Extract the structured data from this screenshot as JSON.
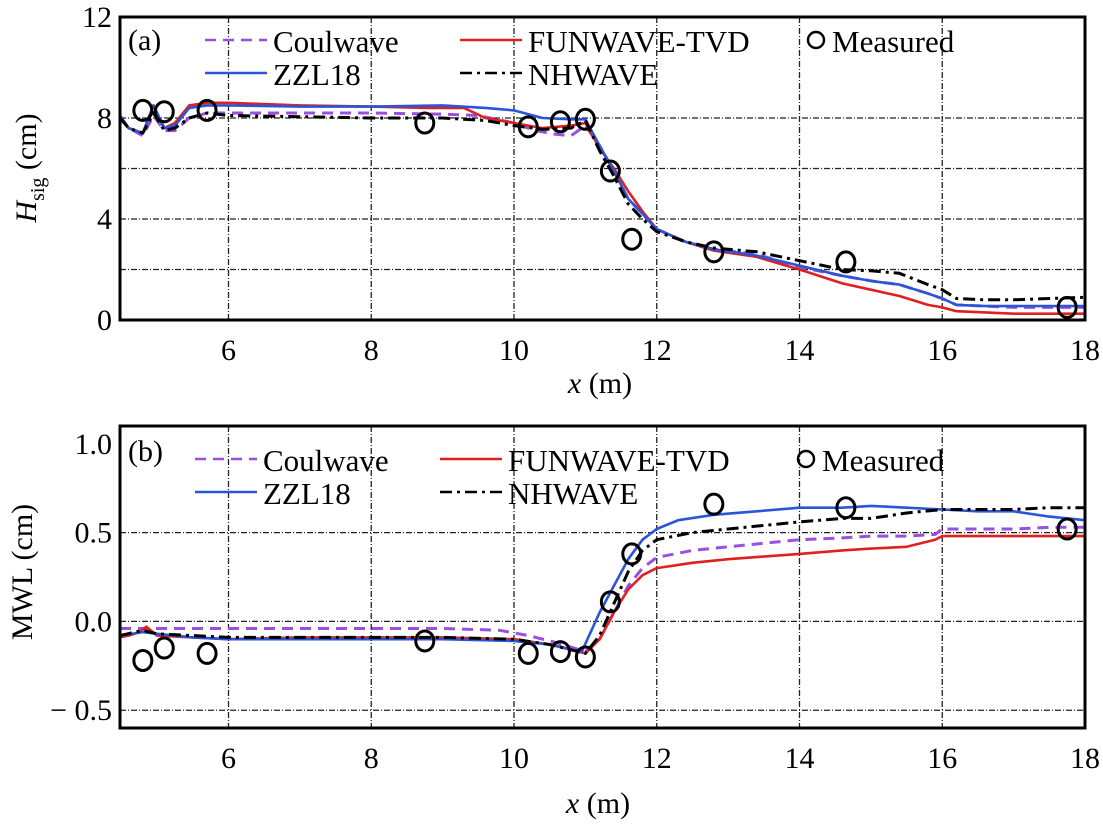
{
  "chart_data": [
    {
      "type": "line",
      "panel_tag": "(a)",
      "title": "",
      "xlabel_var": "x",
      "xlabel_unit": " (m)",
      "ylabel_var": "H",
      "ylabel_sub": "sig",
      "ylabel_unit": " (cm)",
      "xlim": [
        4.48,
        18
      ],
      "ylim": [
        0,
        12
      ],
      "xticks": [
        6,
        8,
        10,
        12,
        14,
        16,
        18
      ],
      "xtick_labels": [
        "6",
        "8",
        "10",
        "12",
        "14",
        "16",
        "18"
      ],
      "yticks": [
        0,
        4,
        8,
        12
      ],
      "ytick_labels": [
        "0",
        "4",
        "8",
        "12"
      ],
      "ygrid": [
        2,
        4,
        6,
        8
      ],
      "grid": true,
      "legend_position": "top",
      "series": [
        {
          "name": "Coulwave",
          "style": "dashed",
          "color": "#9b4fe0",
          "x": [
            4.48,
            4.6,
            4.8,
            4.95,
            5.1,
            5.25,
            5.45,
            5.7,
            6.0,
            7.0,
            8.0,
            9.0,
            9.5,
            10.0,
            10.3,
            10.6,
            10.8,
            11.0,
            11.2,
            11.4,
            11.6,
            11.8,
            12.0,
            12.4,
            12.8,
            13.4,
            14.0,
            14.6,
            15.0,
            15.4,
            15.8,
            16.0,
            16.2,
            16.6,
            17.0,
            17.5,
            18.0
          ],
          "y": [
            8.0,
            7.6,
            7.3,
            8.1,
            7.5,
            7.5,
            8.0,
            8.2,
            8.2,
            8.2,
            8.2,
            8.15,
            8.1,
            7.8,
            7.5,
            7.35,
            7.3,
            7.7,
            6.9,
            5.9,
            4.8,
            4.2,
            3.6,
            3.1,
            2.8,
            2.6,
            2.1,
            1.75,
            1.55,
            1.4,
            1.05,
            0.85,
            0.6,
            0.55,
            0.5,
            0.5,
            0.5
          ]
        },
        {
          "name": "FUNWAVE-TVD",
          "style": "solid",
          "color": "#e02020",
          "x": [
            4.48,
            4.6,
            4.8,
            4.95,
            5.1,
            5.25,
            5.45,
            5.7,
            6.0,
            7.0,
            8.0,
            8.8,
            9.3,
            9.6,
            10.0,
            10.4,
            10.8,
            11.0,
            11.2,
            11.4,
            11.6,
            11.8,
            12.0,
            12.4,
            12.8,
            13.4,
            14.0,
            14.6,
            15.0,
            15.4,
            15.8,
            16.0,
            16.2,
            16.6,
            17.0,
            17.5,
            18.0
          ],
          "y": [
            8.1,
            7.6,
            7.4,
            8.5,
            7.6,
            7.8,
            8.5,
            8.6,
            8.6,
            8.5,
            8.45,
            8.4,
            8.4,
            8.0,
            7.8,
            7.6,
            7.7,
            7.8,
            6.8,
            6.0,
            5.1,
            4.3,
            3.6,
            3.1,
            2.75,
            2.5,
            2.0,
            1.45,
            1.2,
            0.95,
            0.6,
            0.5,
            0.35,
            0.3,
            0.25,
            0.25,
            0.25
          ]
        },
        {
          "name": "ZZL18",
          "style": "solid",
          "color": "#2a55d6",
          "x": [
            4.48,
            4.6,
            4.8,
            4.95,
            5.1,
            5.25,
            5.45,
            5.7,
            6.0,
            7.0,
            8.0,
            9.0,
            9.6,
            10.0,
            10.4,
            10.8,
            11.0,
            11.2,
            11.4,
            11.6,
            11.8,
            12.0,
            12.4,
            12.8,
            13.4,
            14.0,
            14.6,
            15.0,
            15.4,
            15.8,
            16.0,
            16.2,
            16.6,
            17.0,
            17.5,
            18.0
          ],
          "y": [
            8.1,
            7.6,
            7.4,
            8.5,
            7.6,
            7.7,
            8.4,
            8.5,
            8.5,
            8.45,
            8.45,
            8.5,
            8.4,
            8.3,
            8.0,
            7.95,
            7.95,
            6.9,
            5.9,
            4.8,
            4.2,
            3.6,
            3.1,
            2.8,
            2.55,
            2.15,
            1.75,
            1.55,
            1.4,
            1.05,
            0.85,
            0.6,
            0.55,
            0.55,
            0.55,
            0.55
          ]
        },
        {
          "name": "NHWAVE",
          "style": "dashdot",
          "color": "#000000",
          "x": [
            4.48,
            4.6,
            4.8,
            4.95,
            5.1,
            5.25,
            5.45,
            5.7,
            6.0,
            7.0,
            8.0,
            9.0,
            9.6,
            10.0,
            10.4,
            10.8,
            11.0,
            11.2,
            11.4,
            11.6,
            11.8,
            12.0,
            12.4,
            12.8,
            13.4,
            14.0,
            14.6,
            15.0,
            15.4,
            15.8,
            16.0,
            16.2,
            16.6,
            17.0,
            17.5,
            18.0
          ],
          "y": [
            8.0,
            7.6,
            7.4,
            8.2,
            7.5,
            7.6,
            8.0,
            8.2,
            8.1,
            8.05,
            8.0,
            8.0,
            7.9,
            7.7,
            7.55,
            7.6,
            7.9,
            6.7,
            5.7,
            4.6,
            4.0,
            3.5,
            3.1,
            2.85,
            2.7,
            2.35,
            2.0,
            1.95,
            1.85,
            1.4,
            1.2,
            0.85,
            0.8,
            0.8,
            0.85,
            0.9
          ]
        }
      ],
      "measured": {
        "name": "Measured",
        "x": [
          4.8,
          5.1,
          5.7,
          8.75,
          10.2,
          10.65,
          11.0,
          11.35,
          11.65,
          12.8,
          14.65,
          17.75
        ],
        "y": [
          8.3,
          8.25,
          8.3,
          7.8,
          7.65,
          7.85,
          7.95,
          5.9,
          3.2,
          2.7,
          2.3,
          0.5
        ]
      }
    },
    {
      "type": "line",
      "panel_tag": "(b)",
      "title": "",
      "xlabel_var": "x",
      "xlabel_unit": " (m)",
      "ylabel": "MWL (cm)",
      "xlim": [
        4.48,
        18
      ],
      "ylim": [
        -0.6,
        1.1
      ],
      "xticks": [
        6,
        8,
        10,
        12,
        14,
        16,
        18
      ],
      "xtick_labels": [
        "6",
        "8",
        "10",
        "12",
        "14",
        "16",
        "18"
      ],
      "yticks": [
        -0.5,
        0.0,
        0.5,
        1.0
      ],
      "ytick_labels": [
        "− 0.5",
        "0.0",
        "0.5",
        "1.0"
      ],
      "ygrid": [
        -0.5,
        0.0,
        0.5
      ],
      "grid": true,
      "legend_position": "top",
      "series": [
        {
          "name": "Coulwave",
          "style": "dashed",
          "color": "#9b4fe0",
          "x": [
            4.48,
            4.8,
            5.0,
            6.0,
            7.0,
            8.0,
            9.0,
            9.8,
            10.2,
            10.6,
            11.0,
            11.2,
            11.4,
            11.6,
            11.8,
            12.0,
            12.5,
            13.0,
            14.0,
            14.6,
            15.0,
            15.5,
            15.9,
            16.0,
            16.5,
            17.0,
            17.5,
            18.0
          ],
          "y": [
            -0.04,
            -0.04,
            -0.04,
            -0.04,
            -0.04,
            -0.04,
            -0.04,
            -0.05,
            -0.08,
            -0.12,
            -0.17,
            -0.1,
            0.05,
            0.2,
            0.3,
            0.36,
            0.4,
            0.42,
            0.46,
            0.47,
            0.48,
            0.48,
            0.49,
            0.52,
            0.52,
            0.52,
            0.53,
            0.53
          ]
        },
        {
          "name": "FUNWAVE-TVD",
          "style": "solid",
          "color": "#e02020",
          "x": [
            4.48,
            4.6,
            4.75,
            4.85,
            5.0,
            5.5,
            6.0,
            7.0,
            8.0,
            9.0,
            10.0,
            10.5,
            11.0,
            11.2,
            11.4,
            11.6,
            11.8,
            12.0,
            12.5,
            13.0,
            14.0,
            14.6,
            15.0,
            15.5,
            15.9,
            16.0,
            16.5,
            17.0,
            17.5,
            18.0
          ],
          "y": [
            -0.09,
            -0.08,
            -0.06,
            -0.03,
            -0.08,
            -0.09,
            -0.1,
            -0.09,
            -0.09,
            -0.09,
            -0.1,
            -0.13,
            -0.18,
            -0.1,
            0.05,
            0.18,
            0.26,
            0.3,
            0.33,
            0.35,
            0.38,
            0.4,
            0.41,
            0.42,
            0.46,
            0.48,
            0.48,
            0.48,
            0.48,
            0.48
          ]
        },
        {
          "name": "ZZL18",
          "style": "solid",
          "color": "#2a55d6",
          "x": [
            4.48,
            4.8,
            5.0,
            5.5,
            6.0,
            7.0,
            8.0,
            9.0,
            10.0,
            10.5,
            10.95,
            11.2,
            11.4,
            11.6,
            11.8,
            12.0,
            12.3,
            12.8,
            13.4,
            14.0,
            14.6,
            15.0,
            15.5,
            16.0,
            16.5,
            17.0,
            17.5,
            18.0
          ],
          "y": [
            -0.08,
            -0.06,
            -0.07,
            -0.09,
            -0.1,
            -0.1,
            -0.1,
            -0.1,
            -0.11,
            -0.13,
            -0.17,
            0.05,
            0.2,
            0.35,
            0.46,
            0.52,
            0.57,
            0.6,
            0.62,
            0.64,
            0.64,
            0.65,
            0.64,
            0.63,
            0.62,
            0.62,
            0.59,
            0.57
          ]
        },
        {
          "name": "NHWAVE",
          "style": "dashdot",
          "color": "#000000",
          "x": [
            4.48,
            4.8,
            5.0,
            5.5,
            6.0,
            7.0,
            8.0,
            9.0,
            10.0,
            10.5,
            11.0,
            11.2,
            11.4,
            11.6,
            11.8,
            12.0,
            12.5,
            13.0,
            14.0,
            14.6,
            15.0,
            15.5,
            16.0,
            16.5,
            17.0,
            17.5,
            18.0
          ],
          "y": [
            -0.08,
            -0.05,
            -0.07,
            -0.08,
            -0.09,
            -0.09,
            -0.09,
            -0.09,
            -0.1,
            -0.13,
            -0.18,
            -0.08,
            0.1,
            0.28,
            0.4,
            0.46,
            0.5,
            0.52,
            0.56,
            0.58,
            0.58,
            0.61,
            0.63,
            0.63,
            0.63,
            0.64,
            0.64
          ]
        }
      ],
      "measured": {
        "name": "Measured",
        "x": [
          4.8,
          5.1,
          5.7,
          8.75,
          10.2,
          10.65,
          11.0,
          11.35,
          11.65,
          12.8,
          14.65,
          17.75
        ],
        "y": [
          -0.22,
          -0.15,
          -0.18,
          -0.11,
          -0.18,
          -0.17,
          -0.2,
          0.11,
          0.38,
          0.66,
          0.64,
          0.52
        ]
      }
    }
  ]
}
